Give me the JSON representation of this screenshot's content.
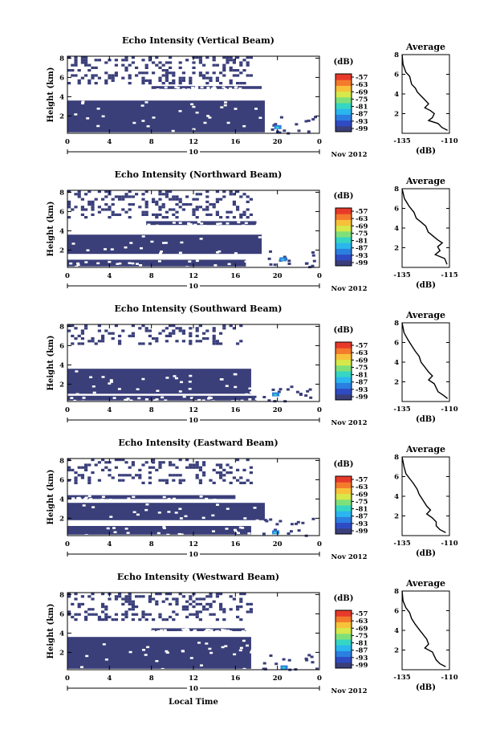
{
  "colors": {
    "background_mask": "#ffffff",
    "low_echo": "#3a3f7a",
    "colorbar": [
      "#3a3f7a",
      "#2f4bc4",
      "#2b7fe0",
      "#2ab6ee",
      "#35d6c4",
      "#7fe07a",
      "#d6e84a",
      "#f7c23a",
      "#f47a2c",
      "#e83a2a"
    ]
  },
  "common": {
    "x_ticks": [
      "0",
      "4",
      "8",
      "12",
      "16",
      "20",
      "0"
    ],
    "date_day": "10",
    "month_year": "Nov 2012",
    "y_ticks": [
      "2",
      "4",
      "6",
      "8"
    ],
    "y_label": "Height (km)",
    "colorbar_unit": "(dB)",
    "colorbar_ticks": [
      "-57",
      "-63",
      "-69",
      "-75",
      "-81",
      "-87",
      "-93",
      "-99"
    ],
    "x_label": "Local Time",
    "avg_title": "Average",
    "avg_unit": "(dB)"
  },
  "panels": [
    {
      "title": "Echo Intensity (Vertical Beam)",
      "avg_xticks": [
        "-135",
        "-110"
      ]
    },
    {
      "title": "Echo Intensity (Northward Beam)",
      "avg_xticks": [
        "-135",
        "-115"
      ]
    },
    {
      "title": "Echo Intensity (Southward Beam)",
      "avg_xticks": [
        "-135",
        "-110"
      ]
    },
    {
      "title": "Echo Intensity (Eastward Beam)",
      "avg_xticks": [
        "-135",
        "-110"
      ]
    },
    {
      "title": "Echo Intensity (Westward Beam)",
      "avg_xticks": [
        "-135",
        "-110"
      ]
    }
  ],
  "chart_data": [
    {
      "type": "heatmap",
      "title": "Echo Intensity (Vertical Beam)",
      "xlabel": "",
      "ylabel": "Height (km)",
      "xlim": [
        0,
        24
      ],
      "ylim": [
        0.2,
        8.2
      ],
      "colorbar": {
        "label": "(dB)",
        "range": [
          -99,
          -57
        ]
      },
      "bands": [
        {
          "t_start": 0,
          "t_end": 18.8,
          "z_bottom": 0.3,
          "z_top": 3.6,
          "dB": -99
        },
        {
          "t_start": 8.0,
          "t_end": 18.5,
          "z_bottom": 4.8,
          "z_top": 5.1,
          "dB": -99
        }
      ],
      "highlights": [
        {
          "t": 20.0,
          "z": 0.8,
          "dB": -90
        }
      ],
      "scatter_region": {
        "t_start": 0,
        "t_end": 17.5,
        "z_bottom": 5.5,
        "z_top": 8.2,
        "dB": -99
      },
      "avg_profile": {
        "title": "Average",
        "xlabel": "(dB)",
        "xlim": [
          -135,
          -110
        ],
        "ylim": [
          0,
          8
        ],
        "x": [
          -135,
          -134.5,
          -133,
          -131,
          -130,
          -128,
          -127,
          -125,
          -123,
          -121,
          -123,
          -120,
          -118,
          -119,
          -121,
          -116,
          -114,
          -111
        ],
        "y": [
          8.0,
          7.0,
          6.2,
          5.8,
          5.0,
          4.6,
          4.2,
          3.8,
          3.4,
          3.0,
          2.6,
          2.3,
          2.0,
          1.6,
          1.3,
          1.0,
          0.6,
          0.3
        ]
      }
    },
    {
      "type": "heatmap",
      "title": "Echo Intensity (Northward Beam)",
      "xlabel": "",
      "ylabel": "Height (km)",
      "xlim": [
        0,
        24
      ],
      "ylim": [
        0.2,
        8.2
      ],
      "colorbar": {
        "label": "(dB)",
        "range": [
          -99,
          -57
        ]
      },
      "bands": [
        {
          "t_start": 0,
          "t_end": 18.5,
          "z_bottom": 1.6,
          "z_top": 3.6,
          "dB": -99
        },
        {
          "t_start": 0,
          "t_end": 17.0,
          "z_bottom": 0.3,
          "z_top": 1.0,
          "dB": -99
        },
        {
          "t_start": 7.5,
          "t_end": 18.0,
          "z_bottom": 4.6,
          "z_top": 5.0,
          "dB": -99
        }
      ],
      "highlights": [
        {
          "t": 20.5,
          "z": 1.0,
          "dB": -92
        }
      ],
      "scatter_region": {
        "t_start": 0,
        "t_end": 17.5,
        "z_bottom": 5.4,
        "z_top": 8.2,
        "dB": -99
      },
      "avg_profile": {
        "title": "Average",
        "xlabel": "(dB)",
        "xlim": [
          -135,
          -115
        ],
        "ylim": [
          0,
          8
        ],
        "x": [
          -135,
          -134,
          -132,
          -130,
          -129,
          -127,
          -125,
          -124,
          -122,
          -120,
          -118,
          -120,
          -119,
          -121,
          -117,
          -116
        ],
        "y": [
          8.0,
          7.0,
          6.2,
          5.6,
          5.0,
          4.6,
          4.2,
          3.6,
          3.2,
          2.8,
          2.5,
          2.1,
          1.7,
          1.3,
          0.9,
          0.3
        ]
      }
    },
    {
      "type": "heatmap",
      "title": "Echo Intensity (Southward Beam)",
      "xlabel": "",
      "ylabel": "Height (km)",
      "xlim": [
        0,
        24
      ],
      "ylim": [
        0.2,
        8.2
      ],
      "colorbar": {
        "label": "(dB)",
        "range": [
          -99,
          -57
        ]
      },
      "bands": [
        {
          "t_start": 0,
          "t_end": 17.5,
          "z_bottom": 1.0,
          "z_top": 3.6,
          "dB": -99
        },
        {
          "t_start": 0,
          "t_end": 18.0,
          "z_bottom": 0.3,
          "z_top": 0.8,
          "dB": -99
        }
      ],
      "highlights": [
        {
          "t": 19.8,
          "z": 0.9,
          "dB": -85
        }
      ],
      "scatter_region": {
        "t_start": 0,
        "t_end": 16.5,
        "z_bottom": 6.2,
        "z_top": 8.2,
        "dB": -99
      },
      "avg_profile": {
        "title": "Average",
        "xlabel": "(dB)",
        "xlim": [
          -135,
          -110
        ],
        "ylim": [
          0,
          8
        ],
        "x": [
          -135,
          -134,
          -132,
          -130,
          -128,
          -126,
          -125,
          -123,
          -121,
          -119,
          -121,
          -118,
          -117,
          -116,
          -113,
          -111
        ],
        "y": [
          8.0,
          7.0,
          6.3,
          5.7,
          5.1,
          4.6,
          4.0,
          3.5,
          3.0,
          2.6,
          2.2,
          1.8,
          1.4,
          1.0,
          0.6,
          0.3
        ]
      }
    },
    {
      "type": "heatmap",
      "title": "Echo Intensity (Eastward Beam)",
      "xlabel": "",
      "ylabel": "Height (km)",
      "xlim": [
        0,
        24
      ],
      "ylim": [
        0.2,
        8.2
      ],
      "colorbar": {
        "label": "(dB)",
        "range": [
          -99,
          -57
        ]
      },
      "bands": [
        {
          "t_start": 0,
          "t_end": 18.8,
          "z_bottom": 1.8,
          "z_top": 3.6,
          "dB": -99
        },
        {
          "t_start": 0,
          "t_end": 17.5,
          "z_bottom": 0.3,
          "z_top": 1.2,
          "dB": -99
        },
        {
          "t_start": 0,
          "t_end": 16.0,
          "z_bottom": 4.0,
          "z_top": 4.4,
          "dB": -99
        }
      ],
      "highlights": [
        {
          "t": 19.8,
          "z": 0.5,
          "dB": -90
        }
      ],
      "scatter_region": {
        "t_start": 0,
        "t_end": 17.5,
        "z_bottom": 5.6,
        "z_top": 8.2,
        "dB": -99
      },
      "avg_profile": {
        "title": "Average",
        "xlabel": "(dB)",
        "xlim": [
          -135,
          -110
        ],
        "ylim": [
          0,
          8
        ],
        "x": [
          -135,
          -134,
          -133,
          -131,
          -129,
          -127,
          -126,
          -124,
          -122,
          -120,
          -122,
          -119,
          -117,
          -117,
          -115,
          -112
        ],
        "y": [
          8.0,
          7.0,
          6.3,
          5.8,
          5.3,
          4.7,
          4.2,
          3.6,
          3.0,
          2.6,
          2.2,
          1.8,
          1.4,
          1.0,
          0.6,
          0.3
        ]
      }
    },
    {
      "type": "heatmap",
      "title": "Echo Intensity (Westward Beam)",
      "xlabel": "Local Time",
      "ylabel": "Height (km)",
      "xlim": [
        0,
        24
      ],
      "ylim": [
        0.2,
        8.2
      ],
      "colorbar": {
        "label": "(dB)",
        "range": [
          -99,
          -57
        ]
      },
      "bands": [
        {
          "t_start": 0,
          "t_end": 17.5,
          "z_bottom": 0.3,
          "z_top": 3.6,
          "dB": -99
        },
        {
          "t_start": 8.0,
          "t_end": 17.0,
          "z_bottom": 4.2,
          "z_top": 4.5,
          "dB": -99
        }
      ],
      "highlights": [
        {
          "t": 20.6,
          "z": 0.4,
          "dB": -88
        }
      ],
      "scatter_region": {
        "t_start": 0,
        "t_end": 17.5,
        "z_bottom": 5.5,
        "z_top": 8.2,
        "dB": -99
      },
      "avg_profile": {
        "title": "Average",
        "xlabel": "(dB)",
        "xlim": [
          -135,
          -110
        ],
        "ylim": [
          0,
          8
        ],
        "x": [
          -135,
          -134.5,
          -133,
          -131,
          -130,
          -128,
          -126,
          -124,
          -122,
          -121,
          -123,
          -119,
          -118,
          -117,
          -115,
          -112
        ],
        "y": [
          8.0,
          7.0,
          6.3,
          5.8,
          5.2,
          4.6,
          4.1,
          3.6,
          3.1,
          2.6,
          2.2,
          1.8,
          1.4,
          1.0,
          0.6,
          0.3
        ]
      }
    }
  ]
}
